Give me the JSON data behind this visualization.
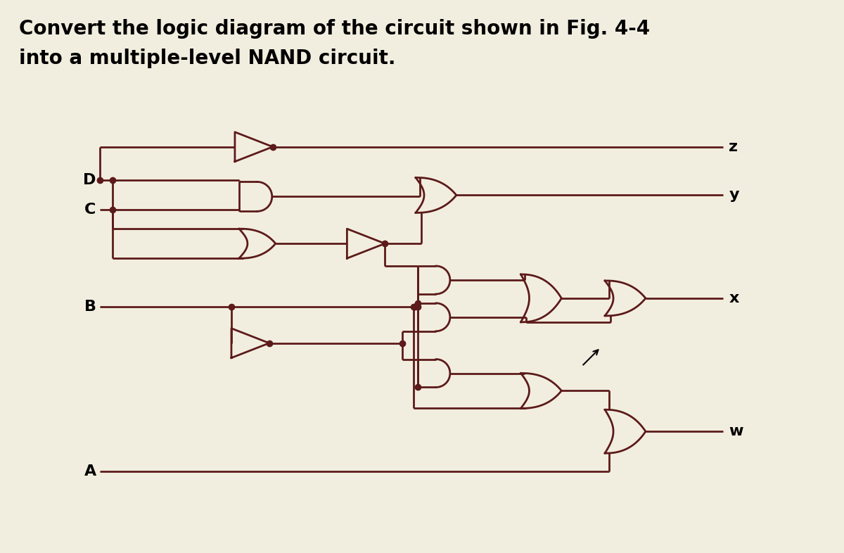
{
  "title_line1": "Convert the logic diagram of the circuit shown in Fig. 4-4",
  "title_line2": "into a multiple-level NAND circuit.",
  "title_fontsize": 20,
  "bg_color": "#f2eedf",
  "line_color": "#5c1a1a",
  "line_width": 2.0,
  "fig_width": 12.0,
  "fig_height": 7.86,
  "dpi": 100,
  "input_labels": [
    "D",
    "C",
    "B",
    "A"
  ],
  "output_labels": [
    "z",
    "y",
    "x",
    "w"
  ],
  "label_fontsize": 16
}
